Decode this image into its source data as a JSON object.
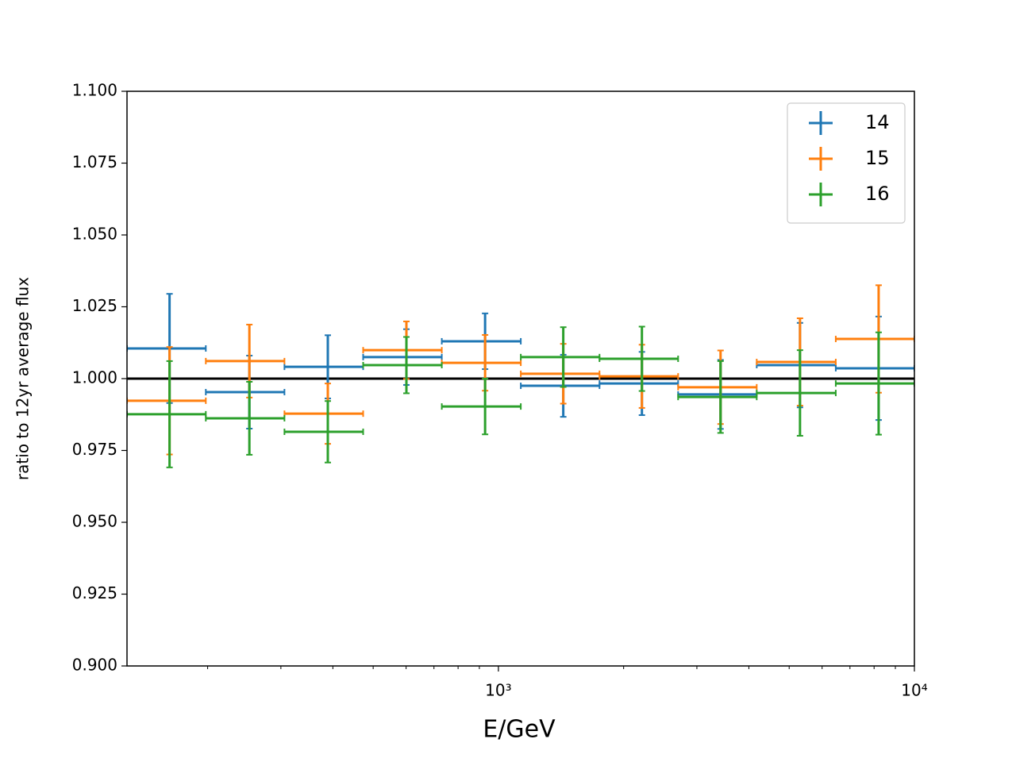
{
  "chart_data": {
    "type": "errorbar",
    "xlabel": "E/GeV",
    "ylabel": "ratio to 12yr average flux",
    "xscale": "log",
    "xlim": [
      128,
      10000
    ],
    "ylim": [
      0.9,
      1.1
    ],
    "xticks": [
      {
        "value": 1000,
        "label": "10³"
      },
      {
        "value": 10000,
        "label": "10⁴"
      }
    ],
    "xminorticks": [
      200,
      300,
      400,
      500,
      600,
      700,
      800,
      900,
      2000,
      3000,
      4000,
      5000,
      6000,
      7000,
      8000,
      9000
    ],
    "yticks": [
      {
        "value": 0.9,
        "label": "0.900"
      },
      {
        "value": 0.925,
        "label": "0.925"
      },
      {
        "value": 0.95,
        "label": "0.950"
      },
      {
        "value": 0.975,
        "label": "0.975"
      },
      {
        "value": 1.0,
        "label": "1.000"
      },
      {
        "value": 1.025,
        "label": "1.025"
      },
      {
        "value": 1.05,
        "label": "1.050"
      },
      {
        "value": 1.075,
        "label": "1.075"
      },
      {
        "value": 1.1,
        "label": "1.100"
      }
    ],
    "hline": 1.0,
    "hline_color": "#000000",
    "legend": "upper right",
    "bins": [
      128,
      198,
      306,
      473,
      731,
      1132,
      1750,
      2704,
      4178,
      6471,
      10000
    ],
    "x": [
      162,
      252,
      389,
      601,
      929,
      1432,
      2213,
      3420,
      5309,
      8204
    ],
    "series": [
      {
        "name": "14",
        "color": "#1f77b4",
        "values": [
          1.0105,
          0.9953,
          1.0041,
          1.0075,
          1.013,
          0.9975,
          0.9983,
          0.9945,
          1.0047,
          1.0036
        ],
        "errors": [
          0.019,
          0.0127,
          0.011,
          0.0097,
          0.0097,
          0.0108,
          0.011,
          0.012,
          0.0147,
          0.018
        ]
      },
      {
        "name": "15",
        "color": "#ff7f0e",
        "values": [
          0.9923,
          1.0061,
          0.9878,
          1.0099,
          1.0055,
          1.0017,
          1.0008,
          0.997,
          1.0058,
          1.0138
        ],
        "errors": [
          0.0187,
          0.0127,
          0.0105,
          0.01,
          0.0097,
          0.0104,
          0.011,
          0.0128,
          0.0152,
          0.0187
        ]
      },
      {
        "name": "16",
        "color": "#2ca02c",
        "values": [
          0.9876,
          0.9862,
          0.9815,
          1.0047,
          0.9903,
          1.0075,
          1.0069,
          0.9936,
          0.995,
          0.9983
        ],
        "errors": [
          0.0185,
          0.0127,
          0.0107,
          0.0098,
          0.0097,
          0.0104,
          0.0112,
          0.0125,
          0.0149,
          0.0178
        ]
      }
    ]
  }
}
